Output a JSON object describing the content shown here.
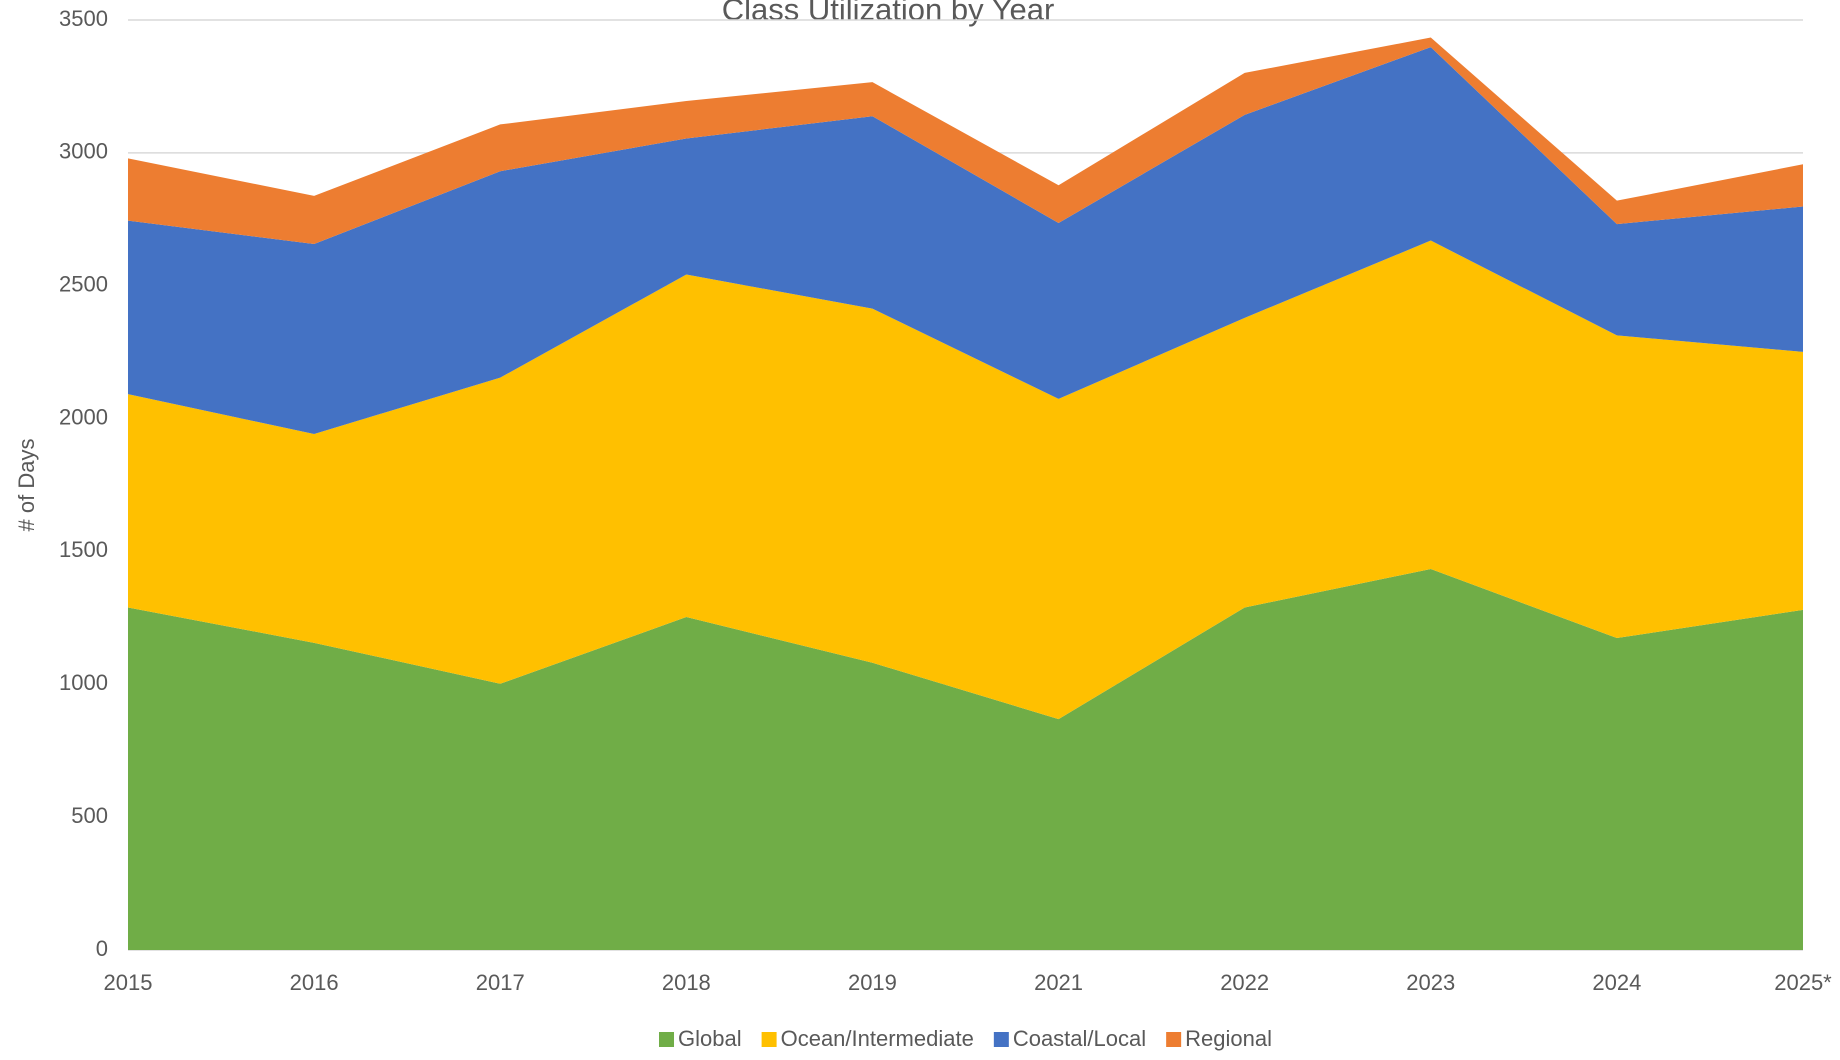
{
  "chart_data": {
    "type": "stacked_area",
    "title": "Class Utilization by Year",
    "y_label": "# of Days",
    "categories": [
      "2015",
      "2016",
      "2017",
      "2018",
      "2019",
      "2021",
      "2022",
      "2023",
      "2024",
      "2025*"
    ],
    "series": [
      {
        "name": "Global",
        "color": "#70ad47",
        "values": [
          1289,
          1156,
          1002,
          1253,
          1081,
          869,
          1289,
          1434,
          1174,
          1280
        ]
      },
      {
        "name": "Ocean/Intermediate",
        "color": "#ffc000",
        "values": [
          803,
          786,
          1152,
          1289,
          1333,
          1205,
          1090,
          1236,
          1139,
          971
        ]
      },
      {
        "name": "Coastal/Local",
        "color": "#4472c4",
        "values": [
          653,
          715,
          777,
          512,
          724,
          662,
          764,
          728,
          419,
          547
        ]
      },
      {
        "name": "Regional",
        "color": "#ed7d31",
        "values": [
          234,
          181,
          176,
          141,
          128,
          142,
          158,
          36,
          88,
          159
        ]
      }
    ],
    "ylim": [
      0,
      3500
    ],
    "yticks": [
      0,
      500,
      1000,
      1500,
      2000,
      2500,
      3000,
      3500
    ],
    "grid": true,
    "legend": "bottom"
  }
}
